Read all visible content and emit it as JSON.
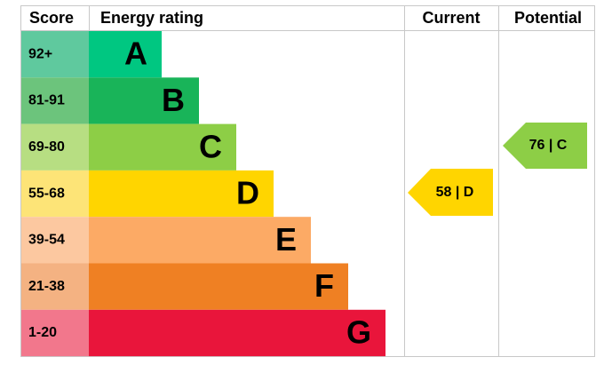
{
  "header": {
    "score": "Score",
    "rating": "Energy rating",
    "current": "Current",
    "potential": "Potential"
  },
  "bands": [
    {
      "range": "92+",
      "letter": "A"
    },
    {
      "range": "81-91",
      "letter": "B"
    },
    {
      "range": "69-80",
      "letter": "C"
    },
    {
      "range": "55-68",
      "letter": "D"
    },
    {
      "range": "39-54",
      "letter": "E"
    },
    {
      "range": "21-38",
      "letter": "F"
    },
    {
      "range": "1-20",
      "letter": "G"
    }
  ],
  "current": "58 | D",
  "potential": "76 | C"
}
